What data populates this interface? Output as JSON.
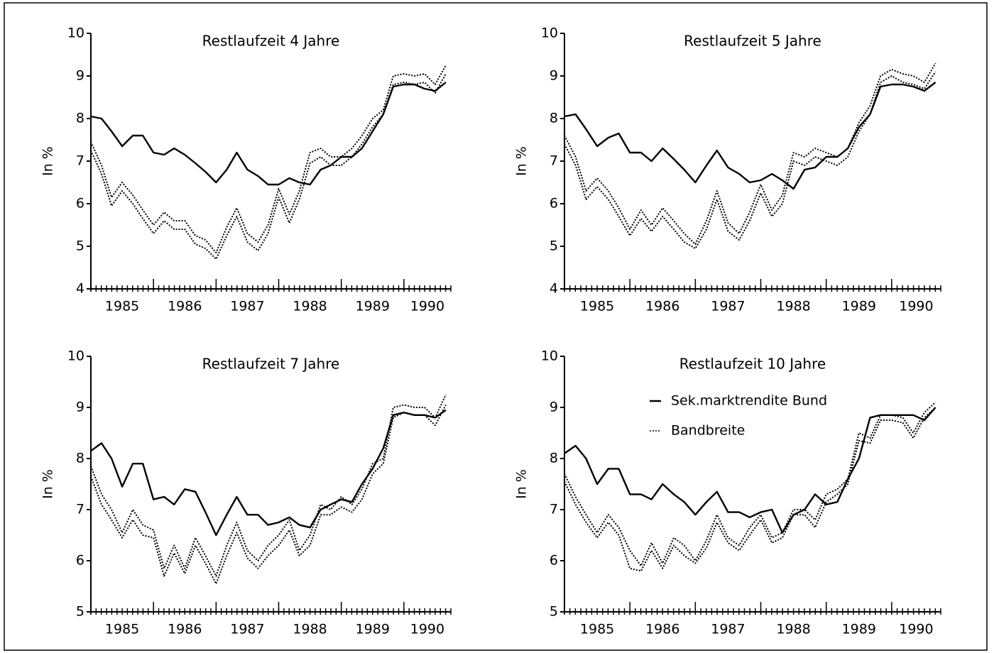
{
  "chart_data": [
    {
      "type": "line",
      "title": "Restlaufzeit 4 Jahre",
      "ylabel": "In %",
      "x": [
        1985,
        1985.17,
        1985.33,
        1985.5,
        1985.67,
        1985.83,
        1986,
        1986.17,
        1986.33,
        1986.5,
        1986.67,
        1986.83,
        1987,
        1987.17,
        1987.33,
        1987.5,
        1987.67,
        1987.83,
        1988,
        1988.17,
        1988.33,
        1988.5,
        1988.67,
        1988.83,
        1989,
        1989.17,
        1989.33,
        1989.5,
        1989.67,
        1989.83,
        1990,
        1990.17,
        1990.33,
        1990.5,
        1990.67
      ],
      "xlim": [
        1985,
        1990.75
      ],
      "xticks": [
        1985,
        1986,
        1987,
        1988,
        1989,
        1990
      ],
      "ylim": [
        4,
        10
      ],
      "yticks": [
        4,
        5,
        6,
        7,
        8,
        9,
        10
      ],
      "series": [
        {
          "color": "#000000",
          "style": "solid",
          "values": [
            8.05,
            8.0,
            7.7,
            7.35,
            7.6,
            7.6,
            7.2,
            7.15,
            7.3,
            7.15,
            6.95,
            6.75,
            6.5,
            6.8,
            7.2,
            6.8,
            6.65,
            6.45,
            6.45,
            6.6,
            6.5,
            6.45,
            6.8,
            6.9,
            7.1,
            7.1,
            7.3,
            7.7,
            8.1,
            8.75,
            8.8,
            8.8,
            8.7,
            8.65,
            8.85
          ]
        },
        {
          "color": "#000000",
          "style": "dotted",
          "values": [
            7.45,
            6.9,
            6.15,
            6.5,
            6.2,
            5.85,
            5.5,
            5.8,
            5.6,
            5.6,
            5.25,
            5.15,
            4.85,
            5.45,
            5.9,
            5.3,
            5.1,
            5.5,
            6.35,
            5.75,
            6.3,
            7.2,
            7.3,
            7.1,
            7.1,
            7.3,
            7.6,
            8.0,
            8.2,
            9.0,
            9.05,
            9.0,
            9.05,
            8.8,
            9.25
          ]
        },
        {
          "color": "#000000",
          "style": "dotted",
          "values": [
            7.25,
            6.7,
            5.95,
            6.3,
            6.0,
            5.65,
            5.3,
            5.6,
            5.4,
            5.4,
            5.05,
            4.95,
            4.7,
            5.25,
            5.7,
            5.1,
            4.9,
            5.3,
            6.15,
            5.55,
            6.1,
            6.95,
            7.1,
            6.9,
            6.9,
            7.1,
            7.4,
            7.8,
            8.1,
            8.8,
            8.85,
            8.8,
            8.85,
            8.6,
            9.05
          ]
        }
      ]
    },
    {
      "type": "line",
      "title": "Restlaufzeit 5 Jahre",
      "ylabel": "In %",
      "x": [
        1985,
        1985.17,
        1985.33,
        1985.5,
        1985.67,
        1985.83,
        1986,
        1986.17,
        1986.33,
        1986.5,
        1986.67,
        1986.83,
        1987,
        1987.17,
        1987.33,
        1987.5,
        1987.67,
        1987.83,
        1988,
        1988.17,
        1988.33,
        1988.5,
        1988.67,
        1988.83,
        1989,
        1989.17,
        1989.33,
        1989.5,
        1989.67,
        1989.83,
        1990,
        1990.17,
        1990.33,
        1990.5,
        1990.67
      ],
      "xlim": [
        1985,
        1990.75
      ],
      "xticks": [
        1985,
        1986,
        1987,
        1988,
        1989,
        1990
      ],
      "ylim": [
        4,
        10
      ],
      "yticks": [
        4,
        5,
        6,
        7,
        8,
        9,
        10
      ],
      "series": [
        {
          "color": "#000000",
          "style": "solid",
          "values": [
            8.05,
            8.1,
            7.75,
            7.35,
            7.55,
            7.65,
            7.2,
            7.2,
            7.0,
            7.3,
            7.05,
            6.8,
            6.5,
            6.9,
            7.25,
            6.85,
            6.7,
            6.5,
            6.55,
            6.7,
            6.55,
            6.35,
            6.8,
            6.85,
            7.1,
            7.1,
            7.3,
            7.8,
            8.1,
            8.75,
            8.8,
            8.8,
            8.75,
            8.65,
            8.85
          ]
        },
        {
          "color": "#000000",
          "style": "dotted",
          "values": [
            7.6,
            7.1,
            6.3,
            6.6,
            6.3,
            5.9,
            5.4,
            5.85,
            5.5,
            5.9,
            5.6,
            5.3,
            5.05,
            5.6,
            6.3,
            5.55,
            5.3,
            5.8,
            6.45,
            5.85,
            6.2,
            7.2,
            7.1,
            7.3,
            7.2,
            7.1,
            7.3,
            7.9,
            8.3,
            9.0,
            9.15,
            9.05,
            9.0,
            8.85,
            9.3
          ]
        },
        {
          "color": "#000000",
          "style": "dotted",
          "values": [
            7.4,
            6.9,
            6.1,
            6.4,
            6.1,
            5.7,
            5.25,
            5.65,
            5.35,
            5.7,
            5.4,
            5.1,
            4.95,
            5.4,
            6.1,
            5.35,
            5.15,
            5.6,
            6.25,
            5.7,
            6.0,
            7.0,
            6.9,
            7.1,
            7.0,
            6.9,
            7.1,
            7.7,
            8.1,
            8.85,
            9.0,
            8.85,
            8.8,
            8.7,
            9.1
          ]
        }
      ]
    },
    {
      "type": "line",
      "title": "Restlaufzeit 7 Jahre",
      "ylabel": "In %",
      "x": [
        1985,
        1985.17,
        1985.33,
        1985.5,
        1985.67,
        1985.83,
        1986,
        1986.17,
        1986.33,
        1986.5,
        1986.67,
        1986.83,
        1987,
        1987.17,
        1987.33,
        1987.5,
        1987.67,
        1987.83,
        1988,
        1988.17,
        1988.33,
        1988.5,
        1988.67,
        1988.83,
        1989,
        1989.17,
        1989.33,
        1989.5,
        1989.67,
        1989.83,
        1990,
        1990.17,
        1990.33,
        1990.5,
        1990.67
      ],
      "xlim": [
        1985,
        1990.75
      ],
      "xticks": [
        1985,
        1986,
        1987,
        1988,
        1989,
        1990
      ],
      "ylim": [
        5,
        10
      ],
      "yticks": [
        5,
        6,
        7,
        8,
        9,
        10
      ],
      "series": [
        {
          "color": "#000000",
          "style": "solid",
          "values": [
            8.15,
            8.3,
            8.0,
            7.45,
            7.9,
            7.9,
            7.2,
            7.25,
            7.1,
            7.4,
            7.35,
            6.95,
            6.5,
            6.9,
            7.25,
            6.9,
            6.9,
            6.7,
            6.75,
            6.85,
            6.7,
            6.65,
            7.0,
            7.1,
            7.2,
            7.15,
            7.5,
            7.8,
            8.2,
            8.85,
            8.9,
            8.85,
            8.85,
            8.8,
            8.95
          ]
        },
        {
          "color": "#000000",
          "style": "dotted",
          "values": [
            7.85,
            7.3,
            7.0,
            6.55,
            7.0,
            6.7,
            6.6,
            5.85,
            6.3,
            5.85,
            6.45,
            6.1,
            5.7,
            6.3,
            6.75,
            6.2,
            6.0,
            6.3,
            6.5,
            6.8,
            6.2,
            6.5,
            7.1,
            7.0,
            7.25,
            7.1,
            7.4,
            7.9,
            8.0,
            9.0,
            9.05,
            9.0,
            9.0,
            8.8,
            9.25
          ]
        },
        {
          "color": "#000000",
          "style": "dotted",
          "values": [
            7.65,
            7.1,
            6.8,
            6.45,
            6.8,
            6.5,
            6.45,
            5.7,
            6.15,
            5.75,
            6.3,
            5.95,
            5.55,
            6.1,
            6.55,
            6.05,
            5.85,
            6.1,
            6.3,
            6.6,
            6.1,
            6.3,
            6.9,
            6.9,
            7.05,
            6.95,
            7.2,
            7.7,
            7.9,
            8.8,
            8.9,
            8.85,
            8.85,
            8.65,
            9.05
          ]
        }
      ]
    },
    {
      "type": "line",
      "title": "Restlaufzeit 10 Jahre",
      "ylabel": "In %",
      "legend": "upper left",
      "x": [
        1985,
        1985.17,
        1985.33,
        1985.5,
        1985.67,
        1985.83,
        1986,
        1986.17,
        1986.33,
        1986.5,
        1986.67,
        1986.83,
        1987,
        1987.17,
        1987.33,
        1987.5,
        1987.67,
        1987.83,
        1988,
        1988.17,
        1988.33,
        1988.5,
        1988.67,
        1988.83,
        1989,
        1989.17,
        1989.33,
        1989.5,
        1989.67,
        1989.83,
        1990,
        1990.17,
        1990.33,
        1990.5,
        1990.67
      ],
      "xlim": [
        1985,
        1990.75
      ],
      "xticks": [
        1985,
        1986,
        1987,
        1988,
        1989,
        1990
      ],
      "ylim": [
        5,
        10
      ],
      "yticks": [
        5,
        6,
        7,
        8,
        9,
        10
      ],
      "series": [
        {
          "name": "Sek.marktrendite Bund",
          "color": "#000000",
          "style": "solid",
          "values": [
            8.1,
            8.25,
            8.0,
            7.5,
            7.8,
            7.8,
            7.3,
            7.3,
            7.2,
            7.5,
            7.3,
            7.15,
            6.9,
            7.15,
            7.35,
            6.95,
            6.95,
            6.85,
            6.95,
            7.0,
            6.55,
            6.9,
            7.0,
            7.3,
            7.1,
            7.15,
            7.6,
            8.0,
            8.8,
            8.85,
            8.85,
            8.85,
            8.85,
            8.75,
            9.0
          ]
        },
        {
          "name": "Bandbreite",
          "color": "#000000",
          "style": "dotted",
          "values": [
            7.7,
            7.25,
            6.9,
            6.55,
            6.9,
            6.65,
            6.2,
            5.9,
            6.35,
            5.95,
            6.45,
            6.3,
            6.0,
            6.4,
            6.9,
            6.45,
            6.3,
            6.65,
            6.9,
            6.45,
            6.55,
            7.0,
            7.0,
            6.8,
            7.3,
            7.4,
            7.6,
            8.5,
            8.4,
            8.85,
            8.85,
            8.8,
            8.5,
            8.9,
            9.1
          ]
        },
        {
          "color": "#000000",
          "style": "dotted",
          "values": [
            7.55,
            7.1,
            6.75,
            6.45,
            6.75,
            6.5,
            5.85,
            5.8,
            6.2,
            5.85,
            6.3,
            6.1,
            5.95,
            6.25,
            6.75,
            6.35,
            6.2,
            6.5,
            6.8,
            6.35,
            6.45,
            6.9,
            6.9,
            6.65,
            7.15,
            7.3,
            7.5,
            8.35,
            8.3,
            8.75,
            8.75,
            8.7,
            8.4,
            8.8,
            9.0
          ]
        }
      ]
    }
  ]
}
